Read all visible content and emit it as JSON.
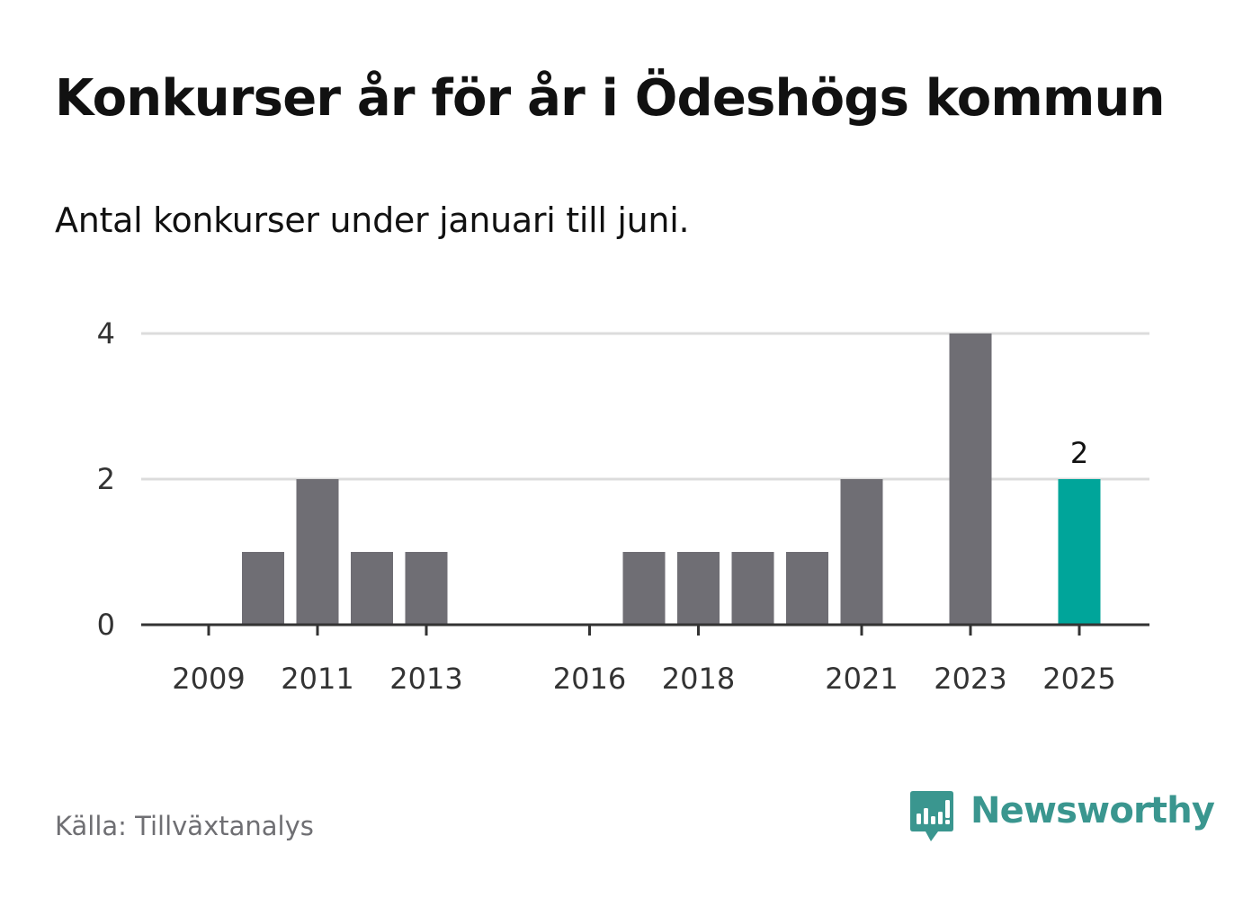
{
  "header": {
    "title": "Konkurser år för år i Ödeshögs kommun",
    "subtitle": "Antal konkurser under januari till juni."
  },
  "footer": {
    "source": "Källa: Tillväxtanalys",
    "brand": "Newsworthy",
    "brand_icon": "newsworthy-logo-icon"
  },
  "colors": {
    "bar": "#6f6e74",
    "highlight": "#00a59a",
    "grid": "#dcdcdc",
    "axis": "#333333",
    "brand": "#3a968f"
  },
  "chart_data": {
    "type": "bar",
    "categories": [
      "2009",
      "2010",
      "2011",
      "2012",
      "2013",
      "2014",
      "2015",
      "2016",
      "2017",
      "2018",
      "2019",
      "2020",
      "2021",
      "2022",
      "2023",
      "2024",
      "2025"
    ],
    "values": [
      0,
      1,
      2,
      1,
      1,
      0,
      0,
      0,
      1,
      1,
      1,
      1,
      2,
      0,
      4,
      0,
      2
    ],
    "highlight_category": "2025",
    "x_tick_labels": [
      "2009",
      "2011",
      "2013",
      "2016",
      "2018",
      "2021",
      "2023",
      "2025"
    ],
    "y_ticks": [
      0,
      2,
      4
    ],
    "ylim": [
      0,
      4
    ],
    "data_labels": [
      {
        "category": "2025",
        "label": "2"
      }
    ],
    "grid": true,
    "legend": "none",
    "xlabel": "",
    "ylabel": ""
  }
}
